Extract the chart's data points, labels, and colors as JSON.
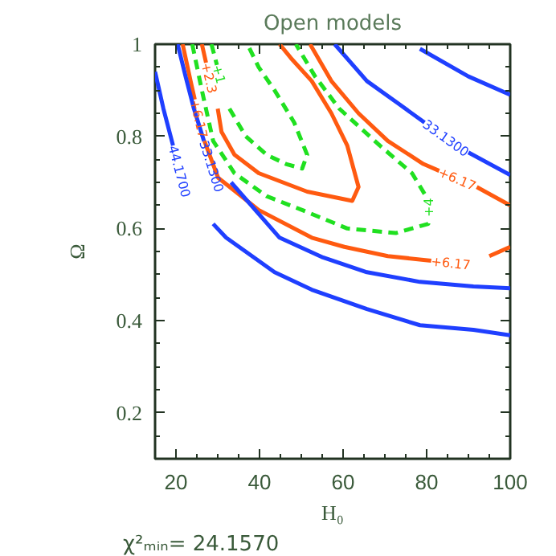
{
  "chart_data": {
    "type": "line",
    "title": "Open models",
    "xlabel": "H₀",
    "ylabel": "Ω",
    "xlim": [
      15,
      100
    ],
    "ylim": [
      0.1,
      1.0
    ],
    "xticks": [
      20,
      40,
      60,
      80,
      100
    ],
    "yticks": [
      0.2,
      0.4,
      0.6,
      0.8,
      1.0
    ],
    "grid": false,
    "series": [
      {
        "color": "#20e020",
        "line_style": "dashed",
        "x": [
          28.5,
          29.8,
          31.0,
          32.8,
          36.7,
          41.7,
          46.3,
          50.2,
          51.4,
          48.3,
          43.6,
          39.8,
          37.1
        ],
        "values": [
          1.0,
          0.955,
          null,
          0.86,
          0.8,
          0.76,
          0.74,
          0.73,
          0.76,
          0.83,
          0.9,
          0.95,
          1.0
        ]
      },
      {
        "color": "#ff5a10",
        "line_style": "solid",
        "x": [
          26.2,
          27.2,
          28.5,
          30.0,
          30.9,
          34.0,
          39.8,
          51.4,
          62.2,
          63.7,
          61.0,
          57.2,
          52.5,
          47.5,
          44.8
        ],
        "values": [
          1.0,
          0.96,
          null,
          0.86,
          0.81,
          0.76,
          0.72,
          0.68,
          0.66,
          0.69,
          0.78,
          0.85,
          0.92,
          0.97,
          1.0
        ]
      },
      {
        "color": "#20e020",
        "line_style": "dashed",
        "x": [
          23.9,
          26.2,
          28.9,
          34.0,
          41.7,
          50.2,
          61.0,
          72.6,
          80.4,
          80.4,
          80.0,
          79.5,
          76.5,
          68.8,
          59.1,
          53.3,
          48.7
        ],
        "values": [
          1.0,
          0.9,
          0.79,
          0.72,
          0.67,
          0.64,
          0.6,
          0.59,
          0.61,
          0.625,
          null,
          0.675,
          0.72,
          0.78,
          0.86,
          0.93,
          1.0
        ]
      },
      {
        "color": "#ff5a10",
        "line_style": "solid",
        "x": [
          21.6,
          23.5,
          24.5,
          25.5,
          26.8,
          30.1,
          39.8,
          52.5,
          60.3,
          70.7,
          81.1,
          86.0,
          95.0,
          100
        ],
        "values": [
          1.0,
          0.92,
          0.88,
          null,
          0.79,
          0.71,
          0.64,
          0.58,
          0.56,
          0.54,
          0.53,
          null,
          0.54,
          0.56
        ]
      },
      {
        "color": "#ff5a10",
        "line_style": "solid",
        "x": [
          52.1,
          57.2,
          63.7,
          70.7,
          79.2,
          83.0,
          87.0,
          92.0,
          94.0,
          100
        ],
        "values": [
          1.0,
          0.92,
          0.85,
          0.79,
          0.74,
          0.725,
          null,
          0.69,
          0.68,
          0.65
        ]
      },
      {
        "color": "#1f3fff",
        "line_style": "solid",
        "x": [
          15,
          17,
          19.3,
          24.0,
          28.9,
          32.0,
          43.6,
          52.5,
          65.7,
          78.4,
          91.2,
          100
        ],
        "values": [
          0.94,
          0.86,
          0.78,
          null,
          0.61,
          0.58,
          0.505,
          0.467,
          0.425,
          0.39,
          0.38,
          0.368
        ]
      },
      {
        "color": "#1f3fff",
        "line_style": "solid",
        "x": [
          20.4,
          22.3,
          24.3,
          25.5,
          26.7,
          29.0,
          33.2,
          44.8,
          55.2,
          65.7,
          78.4,
          91.2,
          100
        ],
        "values": [
          1.0,
          0.93,
          0.86,
          0.825,
          0.79,
          null,
          0.7,
          0.58,
          0.537,
          0.505,
          0.484,
          0.474,
          0.47
        ]
      },
      {
        "color": "#1f3fff",
        "line_style": "solid",
        "x": [
          58.0,
          65.7,
          73.4,
          79.5,
          85.0,
          90.0,
          100
        ],
        "values": [
          1.0,
          0.92,
          0.87,
          0.83,
          null,
          0.765,
          0.716
        ]
      },
      {
        "color": "#1f3fff",
        "line_style": "solid",
        "x": [
          78.4,
          90.0,
          100
        ],
        "values": [
          0.99,
          0.93,
          0.89
        ]
      }
    ],
    "annotations": [
      {
        "text": "+1",
        "x": 29.8,
        "y": 0.955
      },
      {
        "text": "+2.3",
        "x": 27.2,
        "y": 0.96
      },
      {
        "text": "+6.17",
        "x": 24.5,
        "y": 0.88
      },
      {
        "text": "33.1300",
        "x": 26.7,
        "y": 0.79
      },
      {
        "text": "44.1700",
        "x": 19.3,
        "y": 0.78
      },
      {
        "text": "33.1300",
        "x": 79.5,
        "y": 0.83
      },
      {
        "text": "+6.17",
        "x": 83.0,
        "y": 0.725
      },
      {
        "text": "+4",
        "x": 80.4,
        "y": 0.625
      },
      {
        "text": "+6.17",
        "x": 81.1,
        "y": 0.53
      },
      "χ²ₘᵢₙ=        24.1570"
    ]
  }
}
